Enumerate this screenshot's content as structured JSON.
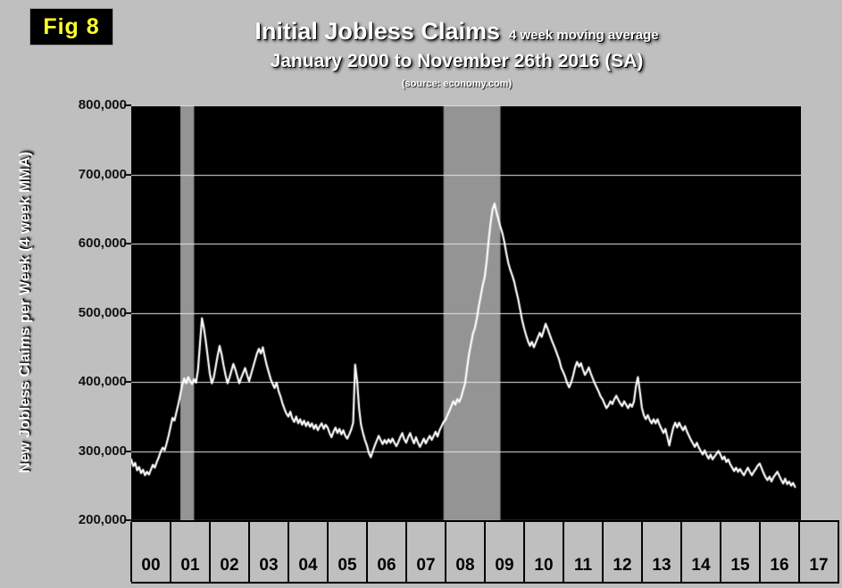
{
  "fig_label": "Fig 8",
  "chart_data": {
    "type": "line",
    "title": "Initial Jobless Claims",
    "title_note": "4 week moving average",
    "subtitle": "January 2000 to November 26th 2016 (SA)",
    "source": "(source: economy.com)",
    "ylabel": "New Jobless Claims per Week (4 week MMA)",
    "ylim": [
      200000,
      800000
    ],
    "y_tick_step": 100000,
    "y_tick_labels": [
      "200,000",
      "300,000",
      "400,000",
      "500,000",
      "600,000",
      "700,000",
      "800,000"
    ],
    "x_domain": [
      2000,
      2017.05
    ],
    "x_tick_labels": [
      "00",
      "01",
      "02",
      "03",
      "04",
      "05",
      "06",
      "07",
      "08",
      "09",
      "10",
      "11",
      "12",
      "13",
      "14",
      "15",
      "16",
      "17"
    ],
    "grid": true,
    "colors": {
      "page_background": "#bfbfbf",
      "plot_background": "#000000",
      "line": "#ffffff",
      "grid": "#e6e6e6",
      "recession_band": "#949494",
      "fig_label": "#ffff2e"
    },
    "recession_bands": [
      [
        2001.25,
        2001.6
      ],
      [
        2007.95,
        2009.4
      ]
    ],
    "series": [
      {
        "name": "Initial Jobless Claims (4 week moving average)",
        "values_unit": "thousands of claims per week",
        "t_start": 2000.0,
        "t_step": 0.05,
        "values": [
          288,
          278,
          283,
          272,
          277,
          268,
          273,
          265,
          270,
          266,
          273,
          280,
          276,
          284,
          291,
          299,
          305,
          301,
          311,
          322,
          335,
          348,
          344,
          356,
          368,
          382,
          396,
          405,
          398,
          407,
          401,
          397,
          404,
          399,
          418,
          455,
          492,
          478,
          458,
          435,
          412,
          398,
          406,
          422,
          438,
          452,
          440,
          424,
          410,
          398,
          406,
          416,
          426,
          418,
          408,
          398,
          406,
          413,
          420,
          410,
          401,
          411,
          421,
          431,
          441,
          448,
          441,
          450,
          436,
          424,
          414,
          404,
          397,
          391,
          399,
          387,
          379,
          369,
          361,
          354,
          350,
          357,
          347,
          342,
          350,
          340,
          346,
          338,
          344,
          336,
          342,
          335,
          340,
          332,
          338,
          330,
          336,
          340,
          332,
          338,
          334,
          326,
          320,
          328,
          334,
          326,
          332,
          324,
          330,
          322,
          318,
          324,
          331,
          341,
          425,
          402,
          362,
          338,
          326,
          316,
          308,
          297,
          291,
          300,
          308,
          315,
          322,
          316,
          310,
          316,
          311,
          317,
          312,
          318,
          312,
          307,
          313,
          320,
          326,
          317,
          312,
          320,
          326,
          318,
          311,
          320,
          312,
          306,
          312,
          318,
          311,
          317,
          322,
          316,
          322,
          328,
          321,
          330,
          336,
          342,
          345,
          352,
          358,
          365,
          372,
          367,
          375,
          371,
          378,
          388,
          398,
          420,
          440,
          455,
          470,
          478,
          492,
          510,
          525,
          540,
          552,
          575,
          605,
          630,
          650,
          658,
          645,
          635,
          624,
          615,
          602,
          586,
          572,
          562,
          554,
          545,
          532,
          520,
          505,
          490,
          478,
          468,
          459,
          452,
          458,
          450,
          457,
          464,
          471,
          465,
          474,
          484,
          477,
          469,
          461,
          454,
          447,
          439,
          431,
          420,
          414,
          407,
          398,
          392,
          399,
          409,
          421,
          429,
          422,
          427,
          418,
          410,
          415,
          421,
          412,
          405,
          398,
          392,
          386,
          379,
          375,
          368,
          362,
          366,
          372,
          368,
          375,
          380,
          374,
          369,
          365,
          372,
          367,
          362,
          368,
          364,
          372,
          394,
          407,
          386,
          363,
          352,
          346,
          352,
          345,
          340,
          346,
          340,
          346,
          338,
          332,
          326,
          332,
          320,
          308,
          322,
          334,
          341,
          334,
          341,
          335,
          330,
          336,
          328,
          322,
          316,
          311,
          306,
          312,
          305,
          300,
          295,
          301,
          294,
          289,
          295,
          288,
          292,
          296,
          300,
          295,
          288,
          292,
          284,
          288,
          281,
          276,
          271,
          276,
          270,
          274,
          269,
          265,
          271,
          276,
          270,
          265,
          270,
          274,
          279,
          282,
          275,
          268,
          262,
          258,
          263,
          256,
          262,
          266,
          270,
          264,
          258,
          253,
          260,
          252,
          256,
          250,
          254,
          248
        ]
      }
    ]
  }
}
